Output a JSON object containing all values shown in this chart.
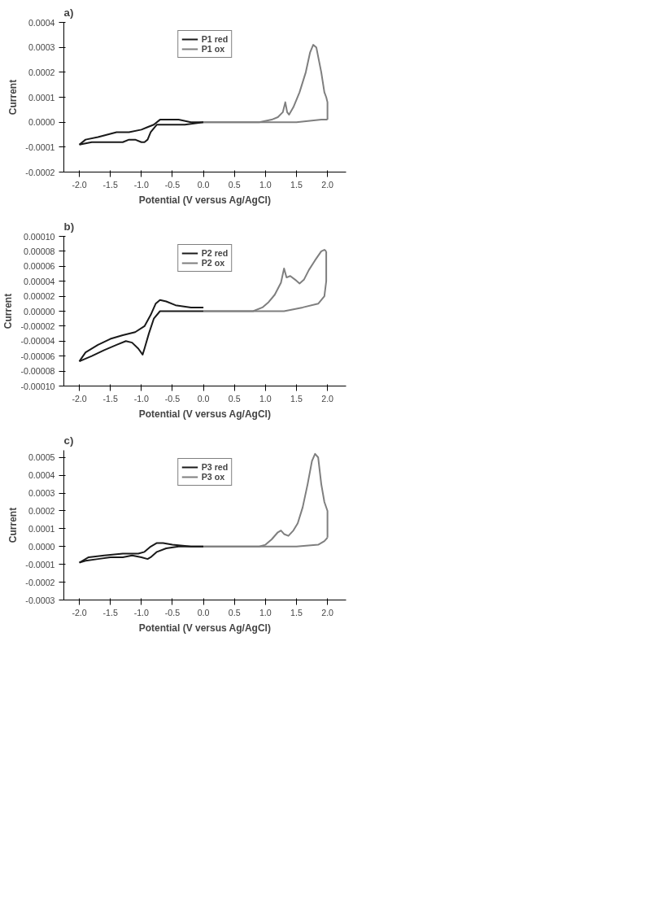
{
  "chart_data": [
    {
      "type": "line",
      "title": "a)",
      "xlabel": "Potential (V versus Ag/AgCl)",
      "ylabel": "Current",
      "xlim": [
        -2.25,
        2.3
      ],
      "ylim": [
        -0.0002,
        0.0004
      ],
      "xticks": [
        {
          "value": -2,
          "label": "-2.0"
        },
        {
          "value": -1.5,
          "label": "-1.5"
        },
        {
          "value": -1,
          "label": "-1.0"
        },
        {
          "value": -0.5,
          "label": "-0.5"
        },
        {
          "value": 0,
          "label": "0.0"
        },
        {
          "value": 0.5,
          "label": "0.5"
        },
        {
          "value": 1,
          "label": "1.0"
        },
        {
          "value": 1.5,
          "label": "1.5"
        },
        {
          "value": 2,
          "label": "2.0"
        }
      ],
      "yticks": [
        {
          "value": -0.0002,
          "label": "-0.0002"
        },
        {
          "value": -0.0001,
          "label": "-0.0001"
        },
        {
          "value": 0,
          "label": "0.0000"
        },
        {
          "value": 0.0001,
          "label": "0.0001"
        },
        {
          "value": 0.0002,
          "label": "0.0002"
        },
        {
          "value": 0.0003,
          "label": "0.0003"
        },
        {
          "value": 0.0004,
          "label": "0.0004"
        }
      ],
      "grid": false,
      "legend": "top",
      "line_style": "solid",
      "marker": "none",
      "series": [
        {
          "name": "P1 red",
          "color": "#1a1a1a",
          "x": [
            0,
            -0.3,
            -0.6,
            -0.75,
            -0.85,
            -0.9,
            -0.95,
            -1.0,
            -1.1,
            -1.2,
            -1.3,
            -1.45,
            -1.6,
            -1.8,
            -2.0
          ],
          "values": [
            0,
            -1e-05,
            -1e-05,
            -1e-05,
            -4e-05,
            -7e-05,
            -8e-05,
            -8e-05,
            -7e-05,
            -7e-05,
            -8e-05,
            -8e-05,
            -8e-05,
            -8e-05,
            -9e-05
          ]
        },
        {
          "color": "#1a1a1a",
          "x": [
            -2.0,
            -1.9,
            -1.7,
            -1.4,
            -1.2,
            -1.0,
            -0.9,
            -0.8,
            -0.7,
            -0.6,
            -0.4,
            -0.2,
            0
          ],
          "values": [
            -9e-05,
            -7e-05,
            -6e-05,
            -4e-05,
            -4e-05,
            -3e-05,
            -2e-05,
            -1e-05,
            1e-05,
            1e-05,
            1e-05,
            0,
            0
          ]
        },
        {
          "name": "P1 ox",
          "color": "#7f7f7f",
          "x": [
            0,
            0.5,
            0.9,
            1.1,
            1.2,
            1.28,
            1.32,
            1.35,
            1.38,
            1.45,
            1.55,
            1.65,
            1.72,
            1.77,
            1.82,
            1.9,
            1.95,
            1.98,
            2.0,
            2.0
          ],
          "values": [
            0,
            0,
            0,
            1e-05,
            2e-05,
            4e-05,
            8e-05,
            4e-05,
            3e-05,
            6e-05,
            0.00012,
            0.0002,
            0.00028,
            0.00031,
            0.0003,
            0.0002,
            0.00012,
            0.0001,
            8e-05,
            1e-05
          ]
        },
        {
          "color": "#7f7f7f",
          "x": [
            2.0,
            1.9,
            1.5,
            1.0,
            0.5,
            0
          ],
          "values": [
            1e-05,
            1e-05,
            0,
            0,
            0,
            0
          ]
        }
      ]
    },
    {
      "type": "line",
      "title": "b)",
      "xlabel": "Potential (V versus Ag/AgCl)",
      "ylabel": "Current",
      "xlim": [
        -2.25,
        2.3
      ],
      "ylim": [
        -0.0001,
        0.0001
      ],
      "xticks": [
        {
          "value": -2,
          "label": "-2.0"
        },
        {
          "value": -1.5,
          "label": "-1.5"
        },
        {
          "value": -1,
          "label": "-1.0"
        },
        {
          "value": -0.5,
          "label": "-0.5"
        },
        {
          "value": 0,
          "label": "0.0"
        },
        {
          "value": 0.5,
          "label": "0.5"
        },
        {
          "value": 1,
          "label": "1.0"
        },
        {
          "value": 1.5,
          "label": "1.5"
        },
        {
          "value": 2,
          "label": "2.0"
        }
      ],
      "yticks": [
        {
          "value": -0.0001,
          "label": "-0.00010"
        },
        {
          "value": -8e-05,
          "label": "-0.00008"
        },
        {
          "value": -6e-05,
          "label": "-0.00006"
        },
        {
          "value": -4e-05,
          "label": "-0.00004"
        },
        {
          "value": -2e-05,
          "label": "-0.00002"
        },
        {
          "value": 0,
          "label": "0.00000"
        },
        {
          "value": 2e-05,
          "label": "0.00002"
        },
        {
          "value": 4e-05,
          "label": "0.00004"
        },
        {
          "value": 6e-05,
          "label": "0.00006"
        },
        {
          "value": 8e-05,
          "label": "0.00008"
        },
        {
          "value": 0.0001,
          "label": "0.00010"
        }
      ],
      "grid": false,
      "legend": "top",
      "line_style": "solid",
      "marker": "none",
      "series": [
        {
          "name": "P2 red",
          "color": "#1a1a1a",
          "x": [
            0,
            -0.5,
            -0.7,
            -0.8,
            -0.88,
            -0.95,
            -0.98,
            -1.05,
            -1.15,
            -1.25,
            -1.4,
            -1.6,
            -1.8,
            -2.0
          ],
          "values": [
            0,
            0,
            0,
            -1e-05,
            -3e-05,
            -5e-05,
            -5.8e-05,
            -5e-05,
            -4.2e-05,
            -4e-05,
            -4.5e-05,
            -5.2e-05,
            -6e-05,
            -6.7e-05
          ]
        },
        {
          "color": "#1a1a1a",
          "x": [
            -2.0,
            -1.9,
            -1.7,
            -1.5,
            -1.3,
            -1.1,
            -0.95,
            -0.85,
            -0.77,
            -0.7,
            -0.6,
            -0.45,
            -0.2,
            0
          ],
          "values": [
            -6.7e-05,
            -5.5e-05,
            -4.5e-05,
            -3.7e-05,
            -3.2e-05,
            -2.8e-05,
            -2e-05,
            -5e-06,
            1e-05,
            1.5e-05,
            1.3e-05,
            8e-06,
            5e-06,
            5e-06
          ]
        },
        {
          "name": "P2 ox",
          "color": "#7f7f7f",
          "x": [
            0,
            0.5,
            0.8,
            0.95,
            1.05,
            1.15,
            1.25,
            1.3,
            1.34,
            1.4,
            1.48,
            1.55,
            1.62,
            1.7,
            1.8,
            1.9,
            1.95,
            1.98
          ],
          "values": [
            0,
            0,
            0,
            5e-06,
            1.2e-05,
            2.2e-05,
            3.8e-05,
            5.7e-05,
            4.5e-05,
            4.7e-05,
            4.2e-05,
            3.7e-05,
            4.2e-05,
            5.5e-05,
            6.8e-05,
            8e-05,
            8.2e-05,
            8e-05
          ]
        },
        {
          "color": "#7f7f7f",
          "x": [
            1.98,
            1.98,
            1.95,
            1.85,
            1.6,
            1.3,
            1.0,
            0.5,
            0
          ],
          "values": [
            8e-05,
            4e-05,
            2e-05,
            1e-05,
            5e-06,
            0,
            0,
            0,
            0
          ]
        }
      ]
    },
    {
      "type": "line",
      "title": "c)",
      "xlabel": "Potential (V versus Ag/AgCl)",
      "ylabel": "Current",
      "xlim": [
        -2.25,
        2.3
      ],
      "ylim": [
        -0.0003,
        0.00054
      ],
      "xticks": [
        {
          "value": -2,
          "label": "-2.0"
        },
        {
          "value": -1.5,
          "label": "-1.5"
        },
        {
          "value": -1,
          "label": "-1.0"
        },
        {
          "value": -0.5,
          "label": "-0.5"
        },
        {
          "value": 0,
          "label": "0.0"
        },
        {
          "value": 0.5,
          "label": "0.5"
        },
        {
          "value": 1,
          "label": "1.0"
        },
        {
          "value": 1.5,
          "label": "1.5"
        },
        {
          "value": 2,
          "label": "2.0"
        }
      ],
      "yticks": [
        {
          "value": -0.0003,
          "label": "-0.0003"
        },
        {
          "value": -0.0002,
          "label": "-0.0002"
        },
        {
          "value": -0.0001,
          "label": "-0.0001"
        },
        {
          "value": 0,
          "label": "0.0000"
        },
        {
          "value": 0.0001,
          "label": "0.0001"
        },
        {
          "value": 0.0002,
          "label": "0.0002"
        },
        {
          "value": 0.0003,
          "label": "0.0003"
        },
        {
          "value": 0.0004,
          "label": "0.0004"
        },
        {
          "value": 0.0005,
          "label": "0.0005"
        }
      ],
      "grid": false,
      "legend": "top",
      "line_style": "solid",
      "marker": "none",
      "series": [
        {
          "name": "P3 red",
          "color": "#1a1a1a",
          "x": [
            0,
            -0.4,
            -0.6,
            -0.75,
            -0.85,
            -0.9,
            -1.0,
            -1.15,
            -1.3,
            -1.5,
            -1.7,
            -1.9,
            -2.0
          ],
          "values": [
            0,
            0,
            -1e-05,
            -3e-05,
            -6e-05,
            -7e-05,
            -6e-05,
            -5e-05,
            -6e-05,
            -6e-05,
            -7e-05,
            -8e-05,
            -9e-05
          ]
        },
        {
          "color": "#1a1a1a",
          "x": [
            -2.0,
            -1.85,
            -1.6,
            -1.3,
            -1.05,
            -0.95,
            -0.85,
            -0.75,
            -0.65,
            -0.5,
            -0.2,
            0
          ],
          "values": [
            -9e-05,
            -6e-05,
            -5e-05,
            -4e-05,
            -4e-05,
            -3e-05,
            0,
            2e-05,
            2e-05,
            1e-05,
            0,
            0
          ]
        },
        {
          "name": "P3 ox",
          "color": "#7f7f7f",
          "x": [
            0,
            0.5,
            0.9,
            1.0,
            1.1,
            1.2,
            1.25,
            1.3,
            1.37,
            1.45,
            1.52,
            1.6,
            1.68,
            1.75,
            1.8,
            1.85,
            1.9,
            1.95,
            2.0,
            2.0
          ],
          "values": [
            0,
            0,
            0,
            1e-05,
            4e-05,
            8e-05,
            9e-05,
            7e-05,
            6e-05,
            9e-05,
            0.00013,
            0.00022,
            0.00035,
            0.00048,
            0.00052,
            0.0005,
            0.00035,
            0.00025,
            0.0002,
            5e-05
          ]
        },
        {
          "color": "#7f7f7f",
          "x": [
            2.0,
            1.95,
            1.85,
            1.5,
            1.0,
            0
          ],
          "values": [
            5e-05,
            3e-05,
            1e-05,
            0,
            0,
            0
          ]
        }
      ]
    }
  ]
}
